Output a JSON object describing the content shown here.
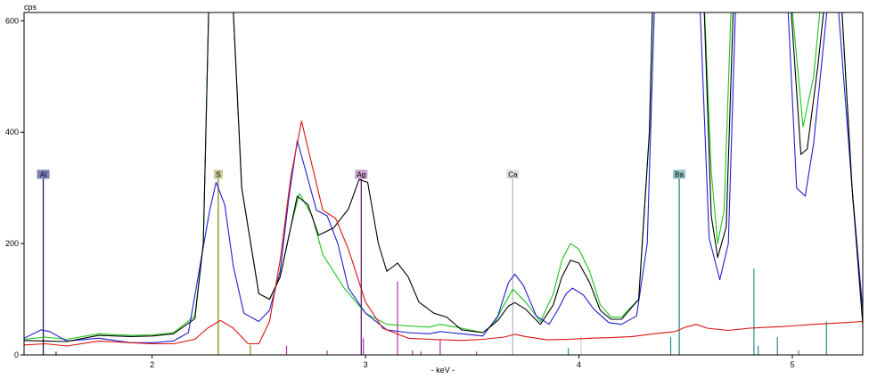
{
  "chart_data": {
    "type": "line",
    "title": "",
    "xlabel": "- keV -",
    "ylabel": "cps",
    "xlim": [
      1.4,
      5.33
    ],
    "ylim": [
      0,
      615
    ],
    "x_ticks": [
      2,
      3,
      4,
      5
    ],
    "y_ticks": [
      0,
      200,
      400,
      600
    ],
    "grid": false,
    "legend": "none",
    "element_markers": [
      {
        "label": "Al",
        "energy": 1.49,
        "height": 310,
        "color": "#1a1a50",
        "tag_color": "#7d7fb8"
      },
      {
        "label": "S",
        "energy": 2.31,
        "height": 310,
        "color": "#8a8a20",
        "tag_color": "#c9c992"
      },
      {
        "label": "Ag",
        "energy": 2.98,
        "height": 310,
        "color": "#6a1a6a",
        "tag_color": "#c8a0c8"
      },
      {
        "label": "Ca",
        "energy": 3.69,
        "height": 310,
        "color": "#b8b8b8",
        "tag_color": "#dcdcdc"
      },
      {
        "label": "Ba",
        "energy": 4.47,
        "height": 310,
        "color": "#2a8a8a",
        "tag_color": "#8fc4c4"
      }
    ],
    "minor_lines": [
      {
        "energy": 1.55,
        "height": 6,
        "color": "#1a1a50"
      },
      {
        "energy": 2.46,
        "height": 18,
        "color": "#8a8a20"
      },
      {
        "energy": 2.63,
        "height": 16,
        "color": "#b030b0"
      },
      {
        "energy": 2.82,
        "height": 8,
        "color": "#b030b0"
      },
      {
        "energy": 2.99,
        "height": 30,
        "color": "#b030b0"
      },
      {
        "energy": 3.15,
        "height": 132,
        "color": "#b030b0"
      },
      {
        "energy": 3.22,
        "height": 8,
        "color": "#b030b0"
      },
      {
        "energy": 3.26,
        "height": 6,
        "color": "#b030b0"
      },
      {
        "energy": 3.35,
        "height": 28,
        "color": "#b030b0"
      },
      {
        "energy": 3.52,
        "height": 6,
        "color": "#b030b0"
      },
      {
        "energy": 3.95,
        "height": 12,
        "color": "#2a8aaa"
      },
      {
        "energy": 4.01,
        "height": 35,
        "color": "#d0d0d0"
      },
      {
        "energy": 4.43,
        "height": 32,
        "color": "#2a8a8a"
      },
      {
        "energy": 4.82,
        "height": 155,
        "color": "#2a8a8a"
      },
      {
        "energy": 4.84,
        "height": 16,
        "color": "#2a8a8a"
      },
      {
        "energy": 4.93,
        "height": 32,
        "color": "#2a8a8a"
      },
      {
        "energy": 5.03,
        "height": 8,
        "color": "#2a8a8a"
      },
      {
        "energy": 5.16,
        "height": 60,
        "color": "#2a8a8a"
      }
    ],
    "series": [
      {
        "color": "#1bc41b",
        "points": [
          [
            1.4,
            28
          ],
          [
            1.5,
            32
          ],
          [
            1.6,
            28
          ],
          [
            1.75,
            38
          ],
          [
            1.9,
            35
          ],
          [
            2.0,
            36
          ],
          [
            2.1,
            40
          ],
          [
            2.2,
            70
          ],
          [
            2.24,
            200
          ],
          [
            2.27,
            700
          ],
          [
            2.37,
            700
          ],
          [
            2.42,
            300
          ],
          [
            2.5,
            110
          ],
          [
            2.55,
            100
          ],
          [
            2.6,
            140
          ],
          [
            2.65,
            230
          ],
          [
            2.69,
            290
          ],
          [
            2.75,
            250
          ],
          [
            2.8,
            180
          ],
          [
            2.85,
            150
          ],
          [
            2.9,
            120
          ],
          [
            3.0,
            75
          ],
          [
            3.1,
            55
          ],
          [
            3.2,
            52
          ],
          [
            3.3,
            50
          ],
          [
            3.35,
            55
          ],
          [
            3.45,
            48
          ],
          [
            3.55,
            40
          ],
          [
            3.6,
            55
          ],
          [
            3.65,
            90
          ],
          [
            3.69,
            118
          ],
          [
            3.75,
            95
          ],
          [
            3.82,
            60
          ],
          [
            3.88,
            110
          ],
          [
            3.92,
            170
          ],
          [
            3.96,
            200
          ],
          [
            4.0,
            190
          ],
          [
            4.05,
            150
          ],
          [
            4.1,
            90
          ],
          [
            4.15,
            68
          ],
          [
            4.2,
            68
          ],
          [
            4.28,
            100
          ],
          [
            4.33,
            400
          ],
          [
            4.35,
            700
          ],
          [
            4.58,
            700
          ],
          [
            4.62,
            330
          ],
          [
            4.65,
            200
          ],
          [
            4.68,
            260
          ],
          [
            4.72,
            700
          ],
          [
            4.98,
            700
          ],
          [
            5.05,
            410
          ],
          [
            5.1,
            500
          ],
          [
            5.15,
            700
          ],
          [
            5.22,
            700
          ],
          [
            5.28,
            300
          ],
          [
            5.33,
            60
          ]
        ]
      },
      {
        "color": "#1f1fd0",
        "points": [
          [
            1.4,
            30
          ],
          [
            1.48,
            45
          ],
          [
            1.52,
            42
          ],
          [
            1.6,
            25
          ],
          [
            1.75,
            30
          ],
          [
            1.9,
            22
          ],
          [
            2.0,
            22
          ],
          [
            2.1,
            25
          ],
          [
            2.17,
            40
          ],
          [
            2.22,
            150
          ],
          [
            2.27,
            260
          ],
          [
            2.3,
            310
          ],
          [
            2.34,
            270
          ],
          [
            2.38,
            160
          ],
          [
            2.43,
            75
          ],
          [
            2.5,
            60
          ],
          [
            2.55,
            80
          ],
          [
            2.6,
            150
          ],
          [
            2.64,
            280
          ],
          [
            2.68,
            385
          ],
          [
            2.72,
            330
          ],
          [
            2.77,
            260
          ],
          [
            2.82,
            250
          ],
          [
            2.87,
            200
          ],
          [
            2.92,
            120
          ],
          [
            3.0,
            75
          ],
          [
            3.1,
            45
          ],
          [
            3.2,
            40
          ],
          [
            3.3,
            38
          ],
          [
            3.35,
            42
          ],
          [
            3.45,
            38
          ],
          [
            3.55,
            34
          ],
          [
            3.62,
            70
          ],
          [
            3.67,
            130
          ],
          [
            3.7,
            145
          ],
          [
            3.74,
            125
          ],
          [
            3.8,
            70
          ],
          [
            3.86,
            55
          ],
          [
            3.9,
            80
          ],
          [
            3.94,
            110
          ],
          [
            3.97,
            120
          ],
          [
            4.02,
            108
          ],
          [
            4.07,
            82
          ],
          [
            4.14,
            58
          ],
          [
            4.2,
            55
          ],
          [
            4.27,
            70
          ],
          [
            4.32,
            200
          ],
          [
            4.36,
            700
          ],
          [
            4.56,
            700
          ],
          [
            4.61,
            210
          ],
          [
            4.66,
            135
          ],
          [
            4.7,
            200
          ],
          [
            4.74,
            700
          ],
          [
            4.97,
            700
          ],
          [
            5.02,
            300
          ],
          [
            5.06,
            285
          ],
          [
            5.1,
            380
          ],
          [
            5.16,
            610
          ],
          [
            5.2,
            700
          ],
          [
            5.28,
            300
          ],
          [
            5.33,
            80
          ]
        ]
      },
      {
        "color": "#000000",
        "points": [
          [
            1.4,
            26
          ],
          [
            1.5,
            25
          ],
          [
            1.6,
            24
          ],
          [
            1.75,
            35
          ],
          [
            1.9,
            33
          ],
          [
            2.0,
            34
          ],
          [
            2.1,
            38
          ],
          [
            2.2,
            65
          ],
          [
            2.24,
            200
          ],
          [
            2.27,
            700
          ],
          [
            2.37,
            700
          ],
          [
            2.42,
            300
          ],
          [
            2.5,
            110
          ],
          [
            2.55,
            100
          ],
          [
            2.6,
            140
          ],
          [
            2.65,
            230
          ],
          [
            2.68,
            285
          ],
          [
            2.73,
            270
          ],
          [
            2.78,
            215
          ],
          [
            2.85,
            228
          ],
          [
            2.92,
            262
          ],
          [
            2.97,
            315
          ],
          [
            3.01,
            310
          ],
          [
            3.06,
            200
          ],
          [
            3.1,
            150
          ],
          [
            3.15,
            165
          ],
          [
            3.2,
            140
          ],
          [
            3.25,
            95
          ],
          [
            3.32,
            75
          ],
          [
            3.38,
            68
          ],
          [
            3.45,
            45
          ],
          [
            3.55,
            40
          ],
          [
            3.62,
            62
          ],
          [
            3.67,
            88
          ],
          [
            3.7,
            94
          ],
          [
            3.75,
            82
          ],
          [
            3.82,
            55
          ],
          [
            3.88,
            90
          ],
          [
            3.92,
            140
          ],
          [
            3.96,
            170
          ],
          [
            4.0,
            165
          ],
          [
            4.05,
            130
          ],
          [
            4.1,
            80
          ],
          [
            4.15,
            64
          ],
          [
            4.2,
            64
          ],
          [
            4.28,
            100
          ],
          [
            4.33,
            400
          ],
          [
            4.35,
            700
          ],
          [
            4.58,
            700
          ],
          [
            4.62,
            250
          ],
          [
            4.65,
            175
          ],
          [
            4.69,
            230
          ],
          [
            4.73,
            700
          ],
          [
            4.98,
            700
          ],
          [
            5.04,
            360
          ],
          [
            5.07,
            370
          ],
          [
            5.12,
            520
          ],
          [
            5.17,
            700
          ],
          [
            5.22,
            700
          ],
          [
            5.28,
            300
          ],
          [
            5.33,
            55
          ]
        ]
      },
      {
        "color": "#dd1111",
        "points": [
          [
            1.4,
            18
          ],
          [
            1.5,
            20
          ],
          [
            1.6,
            16
          ],
          [
            1.75,
            25
          ],
          [
            1.9,
            22
          ],
          [
            2.0,
            20
          ],
          [
            2.1,
            20
          ],
          [
            2.2,
            28
          ],
          [
            2.26,
            48
          ],
          [
            2.32,
            62
          ],
          [
            2.38,
            48
          ],
          [
            2.45,
            20
          ],
          [
            2.5,
            20
          ],
          [
            2.55,
            60
          ],
          [
            2.6,
            170
          ],
          [
            2.65,
            320
          ],
          [
            2.7,
            420
          ],
          [
            2.75,
            340
          ],
          [
            2.8,
            260
          ],
          [
            2.86,
            245
          ],
          [
            2.92,
            190
          ],
          [
            3.0,
            95
          ],
          [
            3.08,
            48
          ],
          [
            3.2,
            30
          ],
          [
            3.3,
            28
          ],
          [
            3.45,
            26
          ],
          [
            3.55,
            28
          ],
          [
            3.65,
            32
          ],
          [
            3.7,
            37
          ],
          [
            3.75,
            33
          ],
          [
            3.85,
            27
          ],
          [
            3.95,
            28
          ],
          [
            4.05,
            30
          ],
          [
            4.15,
            31
          ],
          [
            4.25,
            33
          ],
          [
            4.35,
            38
          ],
          [
            4.45,
            42
          ],
          [
            4.5,
            50
          ],
          [
            4.55,
            55
          ],
          [
            4.6,
            48
          ],
          [
            4.7,
            44
          ],
          [
            4.8,
            48
          ],
          [
            4.9,
            50
          ],
          [
            5.0,
            52
          ],
          [
            5.1,
            55
          ],
          [
            5.2,
            57
          ],
          [
            5.33,
            60
          ]
        ]
      }
    ]
  }
}
